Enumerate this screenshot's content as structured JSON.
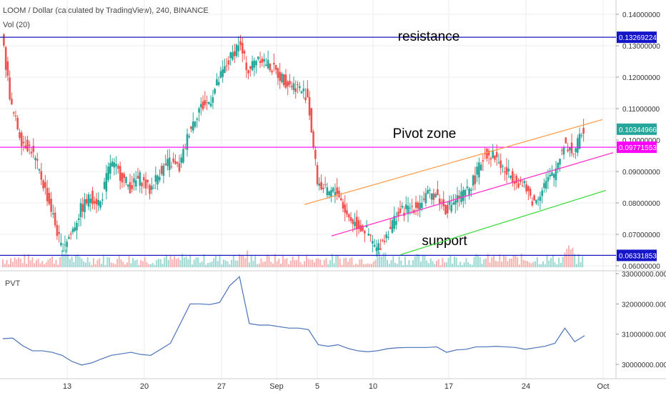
{
  "header": {
    "title": "LOOM / Dollar (calculated by TradingView), 240, BINANCE",
    "volume_label": "Vol (20)"
  },
  "indicator": {
    "label": "PVT"
  },
  "colors": {
    "up": "#26a69a",
    "down": "#ef5350",
    "resistance": "#1414c8",
    "pivot": "#ff00ff",
    "channel_top": "#ff9f50",
    "channel_mid": "#ff33cc",
    "channel_bottom": "#44dd44",
    "pvt_line": "#4a72b8",
    "grid": "#eeeeee"
  },
  "chart_data": [
    {
      "type": "candlestick",
      "title": "LOOM / Dollar (calculated by TradingView), 240, BINANCE",
      "x_tick_labels": [
        "13",
        "20",
        "27",
        "Sep",
        "5",
        "10",
        "17",
        "24",
        "Oct"
      ],
      "y_tick_labels": [
        "0.14000000",
        "0.13000000",
        "0.12000000",
        "0.11000000",
        "0.10000000",
        "0.09000000",
        "0.08000000",
        "0.07000000",
        "0.06000000"
      ],
      "ylim": [
        0.058,
        0.142
      ],
      "price_tags": [
        {
          "value": "0.13269224",
          "color": "#1414c8",
          "price": 0.13269224
        },
        {
          "value": "0.10344966",
          "color": "#26a69a",
          "price": 0.10344966
        },
        {
          "value": "0.09771553",
          "color": "#ff00ff",
          "price": 0.09771553
        },
        {
          "value": "0.06331853",
          "color": "#1414c8",
          "price": 0.06331853
        }
      ],
      "horizontal_lines": [
        {
          "name": "resistance",
          "value": 0.13269224,
          "label": "resistance"
        },
        {
          "name": "pivot",
          "value": 0.09771553,
          "label": "Pivot zone"
        },
        {
          "name": "support",
          "value": 0.06331853,
          "label": "support"
        }
      ],
      "trend_lines": [
        {
          "name": "channel-top",
          "points": [
            [
              "Sep 5",
              0.0795
            ],
            [
              "Sep 29",
              0.1065
            ]
          ]
        },
        {
          "name": "channel-mid",
          "points": [
            [
              "Sep 7",
              0.0695
            ],
            [
              "Sep 29",
              0.096
            ]
          ]
        },
        {
          "name": "channel-bottom",
          "points": [
            [
              "Sep 12",
              0.0635
            ],
            [
              "Sep 29",
              0.084
            ]
          ]
        }
      ],
      "price_path": [
        [
          0,
          0.133
        ],
        [
          1,
          0.11
        ],
        [
          2,
          0.1
        ],
        [
          3,
          0.097
        ],
        [
          4,
          0.088
        ],
        [
          5,
          0.078
        ],
        [
          6,
          0.066
        ],
        [
          7,
          0.07
        ],
        [
          8,
          0.078
        ],
        [
          9,
          0.082
        ],
        [
          10,
          0.08
        ],
        [
          11,
          0.093
        ],
        [
          12,
          0.089
        ],
        [
          13,
          0.085
        ],
        [
          14,
          0.088
        ],
        [
          15,
          0.084
        ],
        [
          16,
          0.09
        ],
        [
          17,
          0.093
        ],
        [
          18,
          0.091
        ],
        [
          19,
          0.103
        ],
        [
          20,
          0.11
        ],
        [
          21,
          0.112
        ],
        [
          22,
          0.119
        ],
        [
          23,
          0.125
        ],
        [
          24,
          0.131
        ],
        [
          25,
          0.122
        ],
        [
          26,
          0.127
        ],
        [
          27,
          0.124
        ],
        [
          28,
          0.121
        ],
        [
          29,
          0.118
        ],
        [
          30,
          0.117
        ],
        [
          31,
          0.114
        ],
        [
          32,
          0.087
        ],
        [
          33,
          0.083
        ],
        [
          34,
          0.084
        ],
        [
          35,
          0.076
        ],
        [
          36,
          0.073
        ],
        [
          37,
          0.071
        ],
        [
          38,
          0.065
        ],
        [
          39,
          0.07
        ],
        [
          40,
          0.076
        ],
        [
          41,
          0.078
        ],
        [
          42,
          0.079
        ],
        [
          43,
          0.082
        ],
        [
          44,
          0.083
        ],
        [
          45,
          0.078
        ],
        [
          46,
          0.081
        ],
        [
          47,
          0.083
        ],
        [
          48,
          0.088
        ],
        [
          49,
          0.096
        ],
        [
          50,
          0.095
        ],
        [
          51,
          0.09
        ],
        [
          52,
          0.088
        ],
        [
          53,
          0.085
        ],
        [
          54,
          0.08
        ],
        [
          55,
          0.086
        ],
        [
          56,
          0.089
        ],
        [
          57,
          0.099
        ],
        [
          58,
          0.096
        ],
        [
          59,
          0.1034
        ]
      ],
      "volume_note": "Vol (20)"
    },
    {
      "type": "line",
      "title": "PVT",
      "y_tick_labels": [
        "33000000.0000",
        "32000000.0000",
        "31000000.0000",
        "30000000.0000"
      ],
      "ylim": [
        29900000,
        33100000
      ],
      "series": [
        {
          "name": "PVT",
          "values": [
            [
              0,
              30850000
            ],
            [
              1,
              30870000
            ],
            [
              2,
              30620000
            ],
            [
              3,
              30450000
            ],
            [
              4,
              30450000
            ],
            [
              5,
              30400000
            ],
            [
              6,
              30300000
            ],
            [
              7,
              30100000
            ],
            [
              8,
              29980000
            ],
            [
              9,
              30050000
            ],
            [
              10,
              30180000
            ],
            [
              11,
              30300000
            ],
            [
              12,
              30350000
            ],
            [
              13,
              30400000
            ],
            [
              14,
              30330000
            ],
            [
              15,
              30300000
            ],
            [
              16,
              30500000
            ],
            [
              17,
              30700000
            ],
            [
              18,
              31350000
            ],
            [
              19,
              32000000
            ],
            [
              20,
              32000000
            ],
            [
              21,
              31980000
            ],
            [
              22,
              32050000
            ],
            [
              23,
              32600000
            ],
            [
              24,
              32900000
            ],
            [
              25,
              31350000
            ],
            [
              26,
              31300000
            ],
            [
              27,
              31300000
            ],
            [
              28,
              31250000
            ],
            [
              29,
              31200000
            ],
            [
              30,
              31200000
            ],
            [
              31,
              31150000
            ],
            [
              32,
              30650000
            ],
            [
              33,
              30600000
            ],
            [
              34,
              30650000
            ],
            [
              35,
              30530000
            ],
            [
              36,
              30450000
            ],
            [
              37,
              30420000
            ],
            [
              38,
              30450000
            ],
            [
              39,
              30520000
            ],
            [
              40,
              30550000
            ],
            [
              41,
              30560000
            ],
            [
              42,
              30560000
            ],
            [
              43,
              30560000
            ],
            [
              44,
              30580000
            ],
            [
              45,
              30400000
            ],
            [
              46,
              30480000
            ],
            [
              47,
              30500000
            ],
            [
              48,
              30580000
            ],
            [
              49,
              30580000
            ],
            [
              50,
              30600000
            ],
            [
              51,
              30580000
            ],
            [
              52,
              30560000
            ],
            [
              53,
              30500000
            ],
            [
              54,
              30550000
            ],
            [
              55,
              30600000
            ],
            [
              56,
              30700000
            ],
            [
              57,
              31200000
            ],
            [
              58,
              30750000
            ],
            [
              59,
              30950000
            ]
          ]
        }
      ]
    }
  ]
}
